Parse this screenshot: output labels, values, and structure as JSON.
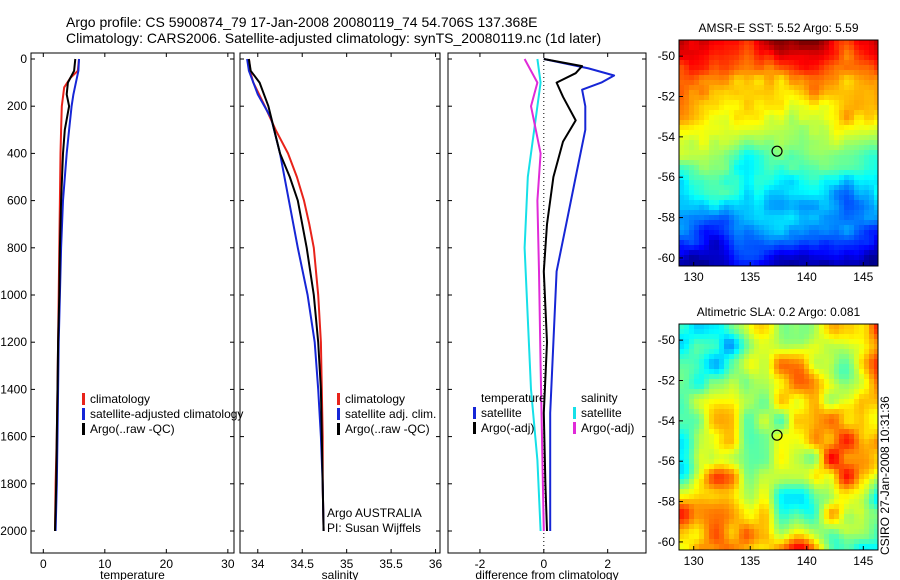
{
  "header": {
    "line1": "Argo profile: CS 5900874_79 17-Jan-2008 20080119_74 54.706S 137.368E",
    "line2": "Climatology: CARS2006. Satellite-adjusted climatology: synTS_20080119.nc (1d later)"
  },
  "credit": "CSIRO 27-Jan-2008 10:31:36",
  "colors": {
    "red": "#e8231a",
    "blue": "#1626d6",
    "black": "#000000",
    "cyan": "#16e0e8",
    "magenta": "#e02ad8"
  },
  "chart_data": [
    {
      "type": "line",
      "id": "temperature",
      "xlabel": "temperature",
      "xlim": [
        -2,
        31
      ],
      "xticks": [
        0,
        10,
        20,
        30
      ],
      "xtick_labels": [
        "0",
        "10",
        "20",
        "30"
      ],
      "ylim": [
        2080,
        0
      ],
      "yticks": [
        0,
        200,
        400,
        600,
        800,
        1000,
        1200,
        1400,
        1600,
        1800,
        2000
      ],
      "ytick_labels": [
        "0",
        "200",
        "400",
        "600",
        "800",
        "1000",
        "1200",
        "1400",
        "1600",
        "1800",
        "2000"
      ],
      "legend": {
        "position": "bottom-right",
        "entries": [
          "climatology",
          "satellite-adjusted climatology",
          "Argo(..raw -QC)"
        ]
      },
      "series": [
        {
          "name": "climatology",
          "color": "#e8231a",
          "points": [
            [
              5.8,
              0
            ],
            [
              5.6,
              50
            ],
            [
              4.4,
              80
            ],
            [
              3.4,
              120
            ],
            [
              3.0,
              200
            ],
            [
              2.9,
              300
            ],
            [
              2.8,
              400
            ],
            [
              2.7,
              600
            ],
            [
              2.6,
              800
            ],
            [
              2.5,
              1000
            ],
            [
              2.4,
              1200
            ],
            [
              2.3,
              1400
            ],
            [
              2.2,
              1600
            ],
            [
              2.0,
              1800
            ],
            [
              1.9,
              2000
            ]
          ]
        },
        {
          "name": "satellite-adjusted climatology",
          "color": "#1626d6",
          "points": [
            [
              5.8,
              0
            ],
            [
              5.7,
              50
            ],
            [
              5.3,
              100
            ],
            [
              4.9,
              150
            ],
            [
              4.6,
              200
            ],
            [
              4.2,
              300
            ],
            [
              3.8,
              400
            ],
            [
              3.2,
              600
            ],
            [
              2.9,
              800
            ],
            [
              2.7,
              1000
            ],
            [
              2.5,
              1200
            ],
            [
              2.4,
              1400
            ],
            [
              2.3,
              1600
            ],
            [
              2.2,
              1800
            ],
            [
              2.0,
              2000
            ]
          ]
        },
        {
          "name": "Argo(..raw -QC)",
          "color": "#000000",
          "points": [
            [
              5.2,
              0
            ],
            [
              5.0,
              50
            ],
            [
              4.0,
              100
            ],
            [
              3.8,
              150
            ],
            [
              4.2,
              200
            ],
            [
              3.5,
              300
            ],
            [
              3.2,
              400
            ],
            [
              2.9,
              600
            ],
            [
              2.7,
              800
            ],
            [
              2.6,
              1000
            ],
            [
              2.4,
              1200
            ],
            [
              2.3,
              1400
            ],
            [
              2.2,
              1600
            ],
            [
              2.1,
              1800
            ],
            [
              1.9,
              2000
            ]
          ]
        }
      ]
    },
    {
      "type": "line",
      "id": "salinity",
      "xlabel": "salinity",
      "xlim": [
        33.8,
        36.05
      ],
      "xticks": [
        34,
        34.5,
        35,
        35.5,
        36
      ],
      "xtick_labels": [
        "34",
        "34.5",
        "35",
        "35.5",
        "36"
      ],
      "ylim": [
        2080,
        0
      ],
      "legend": {
        "position": "bottom-right",
        "entries": [
          "climatology",
          "satellite adj. clim.",
          "Argo(..raw -QC)"
        ]
      },
      "annotations": [
        "Argo AUSTRALIA",
        "PI: Susan Wijffels"
      ],
      "series": [
        {
          "name": "climatology",
          "color": "#e8231a",
          "points": [
            [
              33.9,
              0
            ],
            [
              33.92,
              60
            ],
            [
              33.95,
              100
            ],
            [
              34.08,
              200
            ],
            [
              34.2,
              300
            ],
            [
              34.34,
              400
            ],
            [
              34.44,
              500
            ],
            [
              34.52,
              600
            ],
            [
              34.58,
              700
            ],
            [
              34.63,
              800
            ],
            [
              34.68,
              1000
            ],
            [
              34.71,
              1200
            ],
            [
              34.72,
              1400
            ],
            [
              34.73,
              1600
            ],
            [
              34.73,
              1800
            ],
            [
              34.74,
              2000
            ]
          ]
        },
        {
          "name": "satellite adj. clim.",
          "color": "#1626d6",
          "points": [
            [
              33.88,
              0
            ],
            [
              33.9,
              50
            ],
            [
              34.0,
              150
            ],
            [
              34.15,
              250
            ],
            [
              34.25,
              400
            ],
            [
              34.35,
              600
            ],
            [
              34.45,
              800
            ],
            [
              34.56,
              1000
            ],
            [
              34.64,
              1200
            ],
            [
              34.68,
              1400
            ],
            [
              34.71,
              1600
            ],
            [
              34.73,
              1800
            ],
            [
              34.74,
              2000
            ]
          ]
        },
        {
          "name": "Argo(..raw -QC)",
          "color": "#000000",
          "points": [
            [
              33.9,
              0
            ],
            [
              33.92,
              50
            ],
            [
              34.02,
              100
            ],
            [
              34.12,
              200
            ],
            [
              34.25,
              400
            ],
            [
              34.36,
              500
            ],
            [
              34.45,
              600
            ],
            [
              34.55,
              800
            ],
            [
              34.63,
              1000
            ],
            [
              34.68,
              1200
            ],
            [
              34.71,
              1400
            ],
            [
              34.72,
              1600
            ],
            [
              34.73,
              1800
            ],
            [
              34.74,
              2000
            ]
          ]
        }
      ]
    },
    {
      "type": "line",
      "id": "difference",
      "xlabel": "difference from climatology",
      "xlim": [
        -3.0,
        3.2
      ],
      "xticks": [
        -2,
        0,
        2
      ],
      "xtick_labels": [
        "-2",
        "0",
        "2"
      ],
      "ylim": [
        2080,
        0
      ],
      "legend": {
        "position": "bottom-right",
        "groups": [
          {
            "heading": "temperature",
            "entries": [
              "satellite",
              "Argo(-adj)"
            ]
          },
          {
            "heading": "salinity",
            "entries": [
              "satellite",
              "Argo(-adj)"
            ]
          }
        ]
      },
      "series": [
        {
          "name": "temperature satellite",
          "color": "#1626d6",
          "points": [
            [
              0.0,
              0
            ],
            [
              1.4,
              40
            ],
            [
              2.2,
              70
            ],
            [
              1.8,
              100
            ],
            [
              1.2,
              130
            ],
            [
              1.3,
              200
            ],
            [
              1.3,
              300
            ],
            [
              1.0,
              500
            ],
            [
              0.7,
              700
            ],
            [
              0.4,
              900
            ],
            [
              0.3,
              1200
            ],
            [
              0.2,
              1500
            ],
            [
              0.2,
              1800
            ],
            [
              0.2,
              2000
            ]
          ]
        },
        {
          "name": "temperature Argo(-adj)",
          "color": "#000000",
          "points": [
            [
              0.0,
              0
            ],
            [
              1.2,
              30
            ],
            [
              1.0,
              60
            ],
            [
              0.4,
              100
            ],
            [
              0.6,
              160
            ],
            [
              1.0,
              260
            ],
            [
              0.6,
              350
            ],
            [
              0.3,
              500
            ],
            [
              0.1,
              700
            ],
            [
              0.0,
              900
            ],
            [
              0.1,
              1200
            ],
            [
              0.0,
              1500
            ],
            [
              0.05,
              1800
            ],
            [
              0.1,
              2000
            ]
          ]
        },
        {
          "name": "salinity satellite",
          "color": "#16e0e8",
          "points": [
            [
              -0.2,
              0
            ],
            [
              -0.1,
              100
            ],
            [
              -0.3,
              300
            ],
            [
              -0.5,
              500
            ],
            [
              -0.6,
              800
            ],
            [
              -0.5,
              1100
            ],
            [
              -0.4,
              1400
            ],
            [
              -0.2,
              1700
            ],
            [
              -0.1,
              2000
            ]
          ]
        },
        {
          "name": "salinity Argo(-adj)",
          "color": "#e02ad8",
          "points": [
            [
              -0.6,
              0
            ],
            [
              -0.2,
              100
            ],
            [
              -0.4,
              200
            ],
            [
              -0.1,
              400
            ],
            [
              -0.2,
              600
            ],
            [
              -0.15,
              900
            ],
            [
              -0.1,
              1300
            ],
            [
              0.0,
              2000
            ]
          ]
        }
      ]
    },
    {
      "type": "heatmap",
      "id": "sst",
      "title": "AMSR-E SST: 5.52 Argo: 5.59",
      "xlim": [
        128.7,
        146.3
      ],
      "ylim": [
        -60.4,
        -49.2
      ],
      "xticks": [
        130,
        135,
        140,
        145
      ],
      "xtick_labels": [
        "130",
        "135",
        "140",
        "145"
      ],
      "yticks": [
        -50,
        -52,
        -54,
        -56,
        -58,
        -60
      ],
      "ytick_labels": [
        "-50",
        "-52",
        "-54",
        "-56",
        "-58",
        "-60"
      ],
      "marker": [
        137.37,
        -54.71
      ]
    },
    {
      "type": "heatmap",
      "id": "sla",
      "title": "Altimetric SLA: 0.2 Argo: 0.081",
      "xlim": [
        128.7,
        146.3
      ],
      "ylim": [
        -60.4,
        -49.2
      ],
      "xticks": [
        130,
        135,
        140,
        145
      ],
      "xtick_labels": [
        "130",
        "135",
        "140",
        "145"
      ],
      "yticks": [
        -50,
        -52,
        -54,
        -56,
        -58,
        -60
      ],
      "ytick_labels": [
        "-50",
        "-52",
        "-54",
        "-56",
        "-58",
        "-60"
      ],
      "marker": [
        137.37,
        -54.71
      ]
    }
  ]
}
